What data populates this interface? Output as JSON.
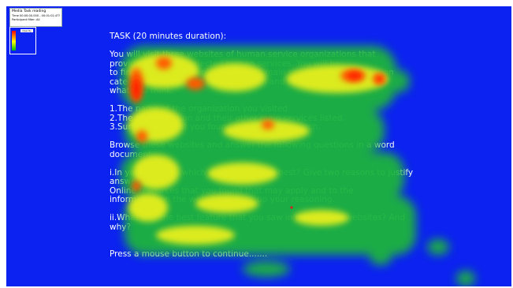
{
  "legend": {
    "title": "Media Task reading",
    "line1": "Time 00:00:00.000 - 00:01:02.4??",
    "line2": "Participant filter: All",
    "chip": "Opacity"
  },
  "task": {
    "lines": [
      "TASK (20 minutes duration):",
      "",
      "You will visit three websites of human service organizations that",
      "provide a range of selected human services. You will be",
      "to find the organization's mission, its main services and any location",
      "categories, and please compare them and see",
      "what you think.",
      "",
      "1.The name of the organization you visited",
      "2.The main function and their other main services listed.",
      "3.Summarize what you found through your search.",
      "",
      "Browse these websites and answer the following questions in a word",
      "document:",
      "",
      "i.In your opinion, which website was the best? Give two reasons to justify",
      "answer.",
      "Online resources that you found that may apply and to the",
      "information on the website to back up your reasoning.",
      "",
      "ii.What was the best feature that you saw in these three websites? And",
      "why?",
      "",
      "",
      "Press a mouse button to continue......."
    ]
  },
  "colors": {
    "background": "#0c22f0",
    "heat_low": "#00c000",
    "heat_mid": "#ffff00",
    "heat_high": "#ff0000"
  }
}
